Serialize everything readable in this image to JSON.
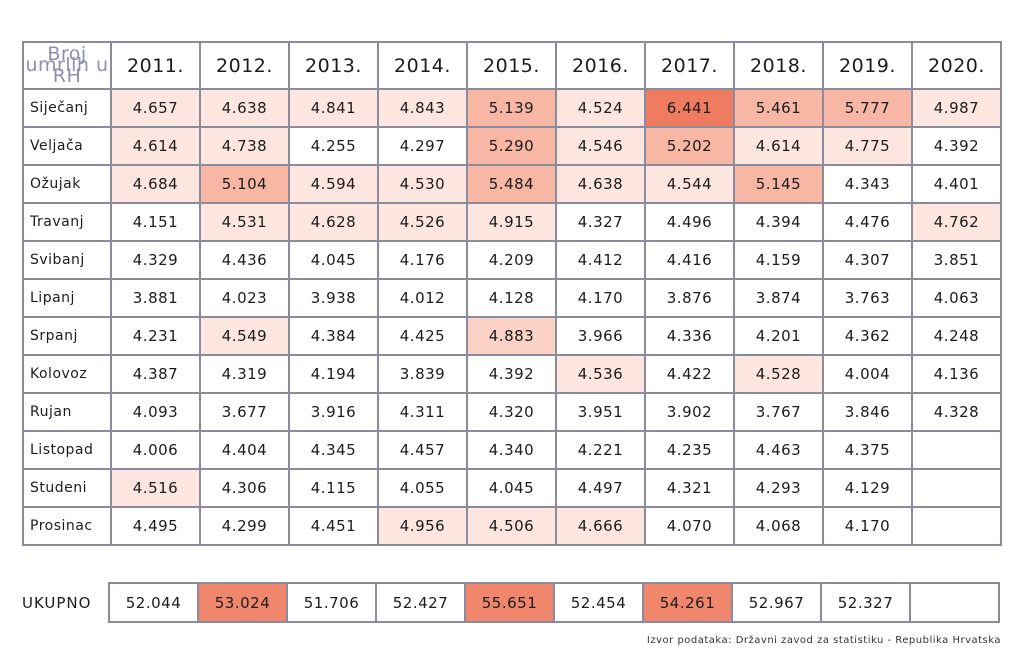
{
  "chart_data": {
    "type": "table",
    "corner_label": "Broj umrlih u RH",
    "years": [
      "2011.",
      "2012.",
      "2013.",
      "2014.",
      "2015.",
      "2016.",
      "2017.",
      "2018.",
      "2019.",
      "2020."
    ],
    "rows": [
      {
        "month": "Siječanj",
        "values": [
          "4.657",
          "4.638",
          "4.841",
          "4.843",
          "5.139",
          "4.524",
          "6.441",
          "5.461",
          "5.777",
          "4.987"
        ],
        "heat": [
          1,
          1,
          1,
          1,
          3,
          1,
          5,
          3,
          3,
          1
        ]
      },
      {
        "month": "Veljača",
        "values": [
          "4.614",
          "4.738",
          "4.255",
          "4.297",
          "5.290",
          "4.546",
          "5.202",
          "4.614",
          "4.775",
          "4.392"
        ],
        "heat": [
          1,
          1,
          0,
          0,
          3,
          1,
          3,
          1,
          1,
          0
        ]
      },
      {
        "month": "Ožujak",
        "values": [
          "4.684",
          "5.104",
          "4.594",
          "4.530",
          "5.484",
          "4.638",
          "4.544",
          "5.145",
          "4.343",
          "4.401"
        ],
        "heat": [
          1,
          3,
          1,
          1,
          3,
          1,
          1,
          3,
          0,
          0
        ]
      },
      {
        "month": "Travanj",
        "values": [
          "4.151",
          "4.531",
          "4.628",
          "4.526",
          "4.915",
          "4.327",
          "4.496",
          "4.394",
          "4.476",
          "4.762"
        ],
        "heat": [
          0,
          1,
          1,
          1,
          1,
          0,
          0,
          0,
          0,
          1
        ]
      },
      {
        "month": "Svibanj",
        "values": [
          "4.329",
          "4.436",
          "4.045",
          "4.176",
          "4.209",
          "4.412",
          "4.416",
          "4.159",
          "4.307",
          "3.851"
        ],
        "heat": [
          0,
          0,
          0,
          0,
          0,
          0,
          0,
          0,
          0,
          0
        ]
      },
      {
        "month": "Lipanj",
        "values": [
          "3.881",
          "4.023",
          "3.938",
          "4.012",
          "4.128",
          "4.170",
          "3.876",
          "3.874",
          "3.763",
          "4.063"
        ],
        "heat": [
          0,
          0,
          0,
          0,
          0,
          0,
          0,
          0,
          0,
          0
        ]
      },
      {
        "month": "Srpanj",
        "values": [
          "4.231",
          "4.549",
          "4.384",
          "4.425",
          "4.883",
          "3.966",
          "4.336",
          "4.201",
          "4.362",
          "4.248"
        ],
        "heat": [
          0,
          1,
          0,
          0,
          2,
          0,
          0,
          0,
          0,
          0
        ]
      },
      {
        "month": "Kolovoz",
        "values": [
          "4.387",
          "4.319",
          "4.194",
          "3.839",
          "4.392",
          "4.536",
          "4.422",
          "4.528",
          "4.004",
          "4.136"
        ],
        "heat": [
          0,
          0,
          0,
          0,
          0,
          1,
          0,
          1,
          0,
          0
        ]
      },
      {
        "month": "Rujan",
        "values": [
          "4.093",
          "3.677",
          "3.916",
          "4.311",
          "4.320",
          "3.951",
          "3.902",
          "3.767",
          "3.846",
          "4.328"
        ],
        "heat": [
          0,
          0,
          0,
          0,
          0,
          0,
          0,
          0,
          0,
          0
        ]
      },
      {
        "month": "Listopad",
        "values": [
          "4.006",
          "4.404",
          "4.345",
          "4.457",
          "4.340",
          "4.221",
          "4.235",
          "4.463",
          "4.375",
          ""
        ],
        "heat": [
          0,
          0,
          0,
          0,
          0,
          0,
          0,
          0,
          0,
          0
        ]
      },
      {
        "month": "Studeni",
        "values": [
          "4.516",
          "4.306",
          "4.115",
          "4.055",
          "4.045",
          "4.497",
          "4.321",
          "4.293",
          "4.129",
          ""
        ],
        "heat": [
          1,
          0,
          0,
          0,
          0,
          0,
          0,
          0,
          0,
          0
        ]
      },
      {
        "month": "Prosinac",
        "values": [
          "4.495",
          "4.299",
          "4.451",
          "4.956",
          "4.506",
          "4.666",
          "4.070",
          "4.068",
          "4.170",
          ""
        ],
        "heat": [
          0,
          0,
          0,
          1,
          1,
          1,
          0,
          0,
          0,
          0
        ]
      }
    ],
    "total": {
      "label": "UKUPNO",
      "values": [
        "52.044",
        "53.024",
        "51.706",
        "52.427",
        "55.651",
        "52.454",
        "54.261",
        "52.967",
        "52.327",
        ""
      ],
      "heat": [
        0,
        4,
        0,
        0,
        4,
        0,
        4,
        0,
        0,
        0
      ]
    }
  },
  "heat_colors": [
    "#ffffff",
    "#fde6e0",
    "#fbd2c6",
    "#f7b7a4",
    "#f0866c",
    "#ef7c60"
  ],
  "source": "Izvor podataka: Državni zavod za statistiku - Republika Hrvatska"
}
